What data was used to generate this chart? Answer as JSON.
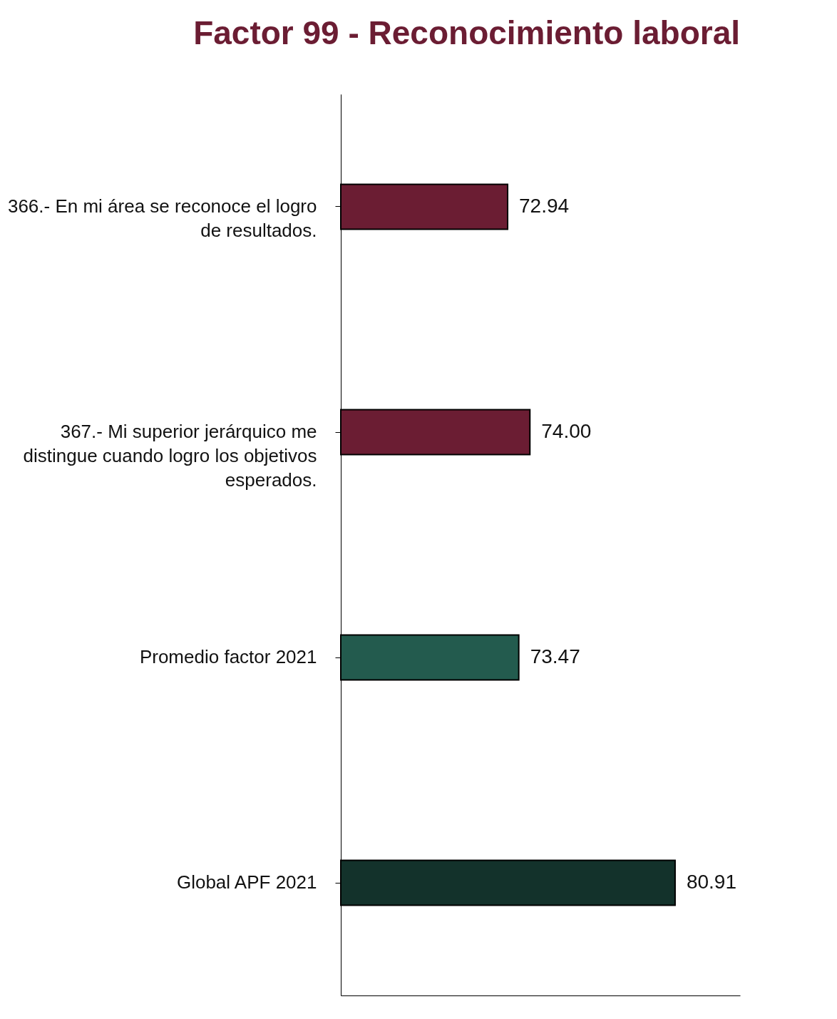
{
  "chart_data": {
    "type": "bar",
    "orientation": "horizontal",
    "title": "Factor 99 - Reconocimiento laboral",
    "categories": [
      "366.- En mi área se reconoce el logro de resultados.",
      "367.- Mi superior jerárquico me distingue cuando logro los objetivos esperados.",
      "Promedio factor 2021",
      "Global APF 2021"
    ],
    "values": [
      72.94,
      74.0,
      73.47,
      80.91
    ],
    "value_labels": [
      "72.94",
      "74.00",
      "73.47",
      "80.91"
    ],
    "colors": [
      "#6b1d33",
      "#6b1d33",
      "#235b4e",
      "#13322b"
    ],
    "xlim": [
      65,
      84
    ],
    "tick_labels": "y"
  }
}
